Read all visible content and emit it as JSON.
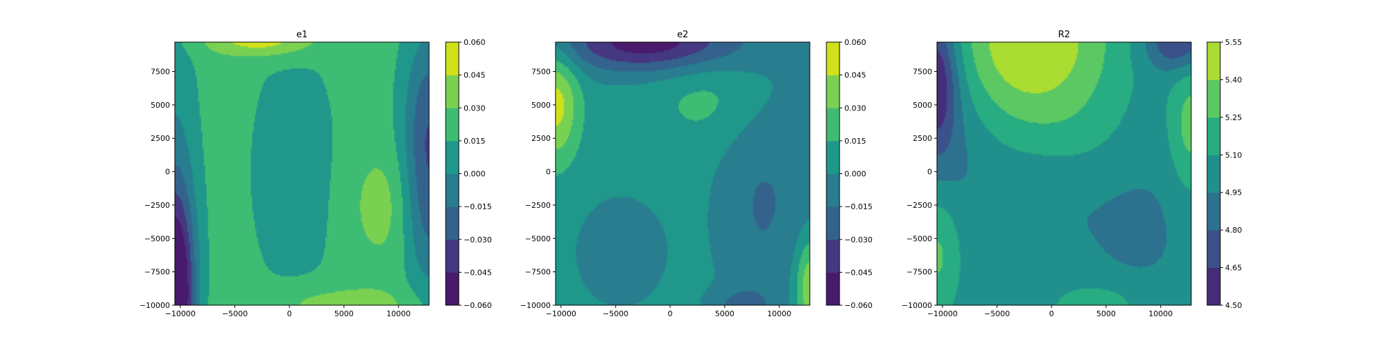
{
  "chart_data": [
    {
      "type": "contourf",
      "title": "e1",
      "xlabel": "",
      "ylabel": "",
      "xlim": [
        -10500,
        12800
      ],
      "ylim": [
        -10000,
        9700
      ],
      "x_ticks": [
        -10000,
        -5000,
        0,
        5000,
        10000
      ],
      "x_tick_labels": [
        "−10000",
        "−5000",
        "0",
        "5000",
        "10000"
      ],
      "y_ticks": [
        -10000,
        -7500,
        -5000,
        -2500,
        0,
        2500,
        5000,
        7500
      ],
      "y_tick_labels": [
        "−10000",
        "−7500",
        "−5000",
        "−2500",
        "0",
        "2500",
        "5000",
        "7500"
      ],
      "levels": [
        -0.06,
        -0.045,
        -0.03,
        -0.015,
        0.0,
        0.015,
        0.03,
        0.045,
        0.06
      ],
      "colorbar_tick_labels": [
        "−0.060",
        "−0.045",
        "−0.030",
        "−0.015",
        "0.000",
        "0.015",
        "0.030",
        "0.045",
        "0.060"
      ],
      "band_colors": [
        "#481a6c",
        "#453781",
        "#33638d",
        "#287d8e",
        "#1f988b",
        "#3fbc73",
        "#7ad151",
        "#d0e11c"
      ],
      "grid": false,
      "field": {
        "base": 0.022,
        "features": [
          {
            "x": -10500,
            "y": -9500,
            "amp": -0.09,
            "sx": 1300,
            "sy": 5500
          },
          {
            "x": -10500,
            "y": 0,
            "amp": -0.02,
            "sx": 1500,
            "sy": 9000
          },
          {
            "x": 12800,
            "y": 3000,
            "amp": -0.05,
            "sx": 1700,
            "sy": 5500
          },
          {
            "x": 12800,
            "y": -5000,
            "amp": -0.02,
            "sx": 1500,
            "sy": 4000
          },
          {
            "x": 400,
            "y": 0,
            "amp": -0.012,
            "sx": 3800,
            "sy": 9000
          },
          {
            "x": 8200,
            "y": -2500,
            "amp": 0.016,
            "sx": 2000,
            "sy": 3000
          },
          {
            "x": 4500,
            "y": -10000,
            "amp": 0.02,
            "sx": 4500,
            "sy": 1000
          },
          {
            "x": -2500,
            "y": 9900,
            "amp": 0.035,
            "sx": 3500,
            "sy": 900
          }
        ]
      }
    },
    {
      "type": "contourf",
      "title": "e2",
      "xlabel": "",
      "ylabel": "",
      "xlim": [
        -10500,
        12800
      ],
      "ylim": [
        -10000,
        9700
      ],
      "x_ticks": [
        -10000,
        -5000,
        0,
        5000,
        10000
      ],
      "x_tick_labels": [
        "−10000",
        "−5000",
        "0",
        "5000",
        "10000"
      ],
      "y_ticks": [
        -10000,
        -7500,
        -5000,
        -2500,
        0,
        2500,
        5000,
        7500
      ],
      "y_tick_labels": [
        "−10000",
        "−7500",
        "−5000",
        "−2500",
        "0",
        "2500",
        "5000",
        "7500"
      ],
      "levels": [
        -0.06,
        -0.045,
        -0.03,
        -0.015,
        0.0,
        0.015,
        0.03,
        0.045,
        0.06
      ],
      "colorbar_tick_labels": [
        "−0.060",
        "−0.045",
        "−0.030",
        "−0.015",
        "0.000",
        "0.015",
        "0.030",
        "0.045",
        "0.060"
      ],
      "band_colors": [
        "#481a6c",
        "#453781",
        "#33638d",
        "#287d8e",
        "#1f988b",
        "#3fbc73",
        "#7ad151",
        "#d0e11c"
      ],
      "grid": false,
      "field": {
        "base": 0.006,
        "features": [
          {
            "x": -10500,
            "y": 5000,
            "amp": 0.045,
            "sx": 1500,
            "sy": 3000
          },
          {
            "x": -2000,
            "y": 9700,
            "amp": -0.06,
            "sx": 6000,
            "sy": 1600
          },
          {
            "x": 8500,
            "y": -2500,
            "amp": -0.022,
            "sx": 3000,
            "sy": 6000
          },
          {
            "x": 12800,
            "y": 5000,
            "amp": -0.015,
            "sx": 1500,
            "sy": 5000
          },
          {
            "x": -4500,
            "y": -6000,
            "amp": -0.012,
            "sx": 3500,
            "sy": 3500
          },
          {
            "x": 3500,
            "y": 5500,
            "amp": 0.014,
            "sx": 3500,
            "sy": 2500
          },
          {
            "x": 12800,
            "y": -8500,
            "amp": 0.04,
            "sx": 900,
            "sy": 2500
          },
          {
            "x": 6500,
            "y": -10000,
            "amp": -0.02,
            "sx": 2000,
            "sy": 900
          }
        ]
      }
    },
    {
      "type": "contourf",
      "title": "R2",
      "xlabel": "",
      "ylabel": "",
      "xlim": [
        -10500,
        12800
      ],
      "ylim": [
        -10000,
        9700
      ],
      "x_ticks": [
        -10000,
        -5000,
        0,
        5000,
        10000
      ],
      "x_tick_labels": [
        "−10000",
        "−5000",
        "0",
        "5000",
        "10000"
      ],
      "y_ticks": [
        -10000,
        -7500,
        -5000,
        -2500,
        0,
        2500,
        5000,
        7500
      ],
      "y_tick_labels": [
        "−10000",
        "−7500",
        "−5000",
        "−2500",
        "0",
        "2500",
        "5000",
        "7500"
      ],
      "levels": [
        4.5,
        4.65,
        4.8,
        4.95,
        5.1,
        5.25,
        5.4,
        5.55
      ],
      "colorbar_tick_labels": [
        "4.50",
        "4.65",
        "4.80",
        "4.95",
        "5.10",
        "5.25",
        "5.40",
        "5.55"
      ],
      "band_colors": [
        "#472c7a",
        "#3b518b",
        "#2c718e",
        "#21908d",
        "#27ad81",
        "#5cc863",
        "#aadc32"
      ],
      "grid": false,
      "field": {
        "base": 5.0,
        "features": [
          {
            "x": -2000,
            "y": 9700,
            "amp": 0.55,
            "sx": 5500,
            "sy": 4500
          },
          {
            "x": -10500,
            "y": 7000,
            "amp": -0.45,
            "sx": 1300,
            "sy": 3500
          },
          {
            "x": -10500,
            "y": 5000,
            "amp": -0.18,
            "sx": 3000,
            "sy": 6000
          },
          {
            "x": 11500,
            "y": 9700,
            "amp": -0.4,
            "sx": 2000,
            "sy": 1500
          },
          {
            "x": 12800,
            "y": 3500,
            "amp": 0.3,
            "sx": 1400,
            "sy": 3500
          },
          {
            "x": -10500,
            "y": -6000,
            "amp": 0.3,
            "sx": 1600,
            "sy": 3500
          },
          {
            "x": 4000,
            "y": -10000,
            "amp": 0.2,
            "sx": 3000,
            "sy": 1200
          },
          {
            "x": 8000,
            "y": -4000,
            "amp": -0.08,
            "sx": 3000,
            "sy": 3500
          },
          {
            "x": 0,
            "y": -1500,
            "amp": -0.08,
            "sx": 4000,
            "sy": 3000
          },
          {
            "x": 2000,
            "y": 2000,
            "amp": 0.08,
            "sx": 4000,
            "sy": 3000
          }
        ]
      }
    }
  ]
}
